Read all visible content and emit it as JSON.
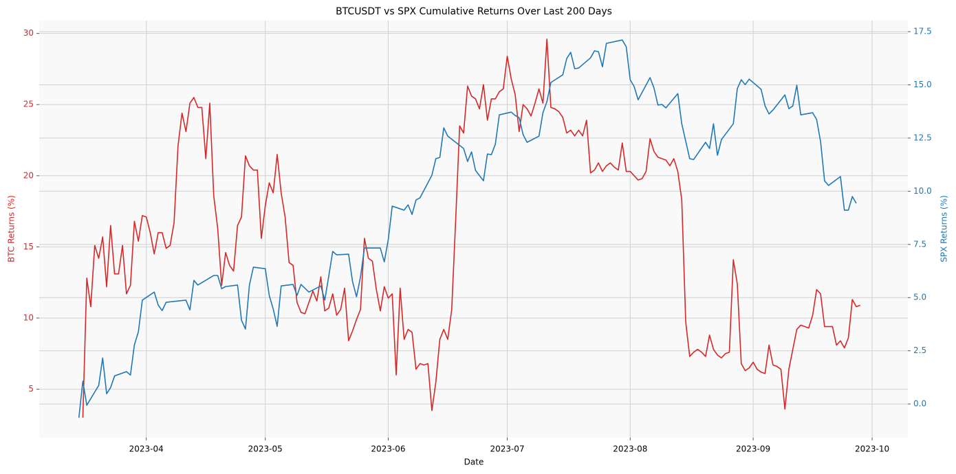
{
  "chart_data": {
    "type": "line",
    "title": "BTCUSDT vs SPX Cumulative Returns Over Last 200 Days",
    "xlabel": "Date",
    "ylabel": "BTC Returns (%)",
    "y2label": "SPX Returns (%)",
    "xlim": [
      "2023-03-05",
      "2023-10-10"
    ],
    "xticks": [
      {
        "value": "2023-04-01",
        "label": "2023-04"
      },
      {
        "value": "2023-05-01",
        "label": "2023-05"
      },
      {
        "value": "2023-06-01",
        "label": "2023-06"
      },
      {
        "value": "2023-07-01",
        "label": "2023-07"
      },
      {
        "value": "2023-08-01",
        "label": "2023-08"
      },
      {
        "value": "2023-09-01",
        "label": "2023-09"
      },
      {
        "value": "2023-10-01",
        "label": "2023-10"
      }
    ],
    "ylim": [
      1.6,
      30.9
    ],
    "yticks": [
      5,
      10,
      15,
      20,
      25,
      30
    ],
    "y2lim": [
      -1.58,
      18.02
    ],
    "y2ticks": [
      {
        "value": 0,
        "label": "0.0"
      },
      {
        "value": 2.5,
        "label": "2.5"
      },
      {
        "value": 5,
        "label": "5.0"
      },
      {
        "value": 7.5,
        "label": "7.5"
      },
      {
        "value": 10,
        "label": "10.0"
      },
      {
        "value": 12.5,
        "label": "12.5"
      },
      {
        "value": 15,
        "label": "15.0"
      },
      {
        "value": 17.5,
        "label": "17.5"
      }
    ],
    "grid": true,
    "series": [
      {
        "color": "#d62728",
        "axis": "y",
        "x": [
          "2023-03-16",
          "2023-03-17",
          "2023-03-18",
          "2023-03-19",
          "2023-03-20",
          "2023-03-21",
          "2023-03-22",
          "2023-03-23",
          "2023-03-24",
          "2023-03-25",
          "2023-03-26",
          "2023-03-27",
          "2023-03-28",
          "2023-03-29",
          "2023-03-30",
          "2023-03-31",
          "2023-04-01",
          "2023-04-02",
          "2023-04-03",
          "2023-04-04",
          "2023-04-05",
          "2023-04-06",
          "2023-04-07",
          "2023-04-08",
          "2023-04-09",
          "2023-04-10",
          "2023-04-11",
          "2023-04-12",
          "2023-04-13",
          "2023-04-14",
          "2023-04-15",
          "2023-04-16",
          "2023-04-17",
          "2023-04-18",
          "2023-04-19",
          "2023-04-20",
          "2023-04-21",
          "2023-04-22",
          "2023-04-23",
          "2023-04-24",
          "2023-04-25",
          "2023-04-26",
          "2023-04-27",
          "2023-04-28",
          "2023-04-29",
          "2023-04-30",
          "2023-05-01",
          "2023-05-02",
          "2023-05-03",
          "2023-05-04",
          "2023-05-05",
          "2023-05-06",
          "2023-05-07",
          "2023-05-08",
          "2023-05-09",
          "2023-05-10",
          "2023-05-11",
          "2023-05-12",
          "2023-05-13",
          "2023-05-14",
          "2023-05-15",
          "2023-05-16",
          "2023-05-17",
          "2023-05-18",
          "2023-05-19",
          "2023-05-20",
          "2023-05-21",
          "2023-05-22",
          "2023-05-23",
          "2023-05-24",
          "2023-05-25",
          "2023-05-26",
          "2023-05-27",
          "2023-05-28",
          "2023-05-29",
          "2023-05-30",
          "2023-05-31",
          "2023-06-01",
          "2023-06-02",
          "2023-06-03",
          "2023-06-04",
          "2023-06-05",
          "2023-06-06",
          "2023-06-07",
          "2023-06-08",
          "2023-06-09",
          "2023-06-10",
          "2023-06-11",
          "2023-06-12",
          "2023-06-13",
          "2023-06-14",
          "2023-06-15",
          "2023-06-16",
          "2023-06-17",
          "2023-06-18",
          "2023-06-19",
          "2023-06-20",
          "2023-06-21",
          "2023-06-22",
          "2023-06-23",
          "2023-06-24",
          "2023-06-25",
          "2023-06-26",
          "2023-06-27",
          "2023-06-28",
          "2023-06-29",
          "2023-06-30",
          "2023-07-01",
          "2023-07-02",
          "2023-07-03",
          "2023-07-04",
          "2023-07-05",
          "2023-07-06",
          "2023-07-07",
          "2023-07-08",
          "2023-07-09",
          "2023-07-10",
          "2023-07-11",
          "2023-07-12",
          "2023-07-13",
          "2023-07-14",
          "2023-07-15",
          "2023-07-16",
          "2023-07-17",
          "2023-07-18",
          "2023-07-19",
          "2023-07-20",
          "2023-07-21",
          "2023-07-22",
          "2023-07-23",
          "2023-07-24",
          "2023-07-25",
          "2023-07-26",
          "2023-07-27",
          "2023-07-28",
          "2023-07-29",
          "2023-07-30",
          "2023-07-31",
          "2023-08-01",
          "2023-08-02",
          "2023-08-03",
          "2023-08-04",
          "2023-08-05",
          "2023-08-06",
          "2023-08-07",
          "2023-08-08",
          "2023-08-09",
          "2023-08-10",
          "2023-08-11",
          "2023-08-12",
          "2023-08-13",
          "2023-08-14",
          "2023-08-15",
          "2023-08-16",
          "2023-08-17",
          "2023-08-18",
          "2023-08-19",
          "2023-08-20",
          "2023-08-21",
          "2023-08-22",
          "2023-08-23",
          "2023-08-24",
          "2023-08-25",
          "2023-08-26",
          "2023-08-27",
          "2023-08-28",
          "2023-08-29",
          "2023-08-30",
          "2023-08-31",
          "2023-09-01",
          "2023-09-02",
          "2023-09-03",
          "2023-09-04",
          "2023-09-05",
          "2023-09-06",
          "2023-09-07",
          "2023-09-08",
          "2023-09-09",
          "2023-09-10",
          "2023-09-11",
          "2023-09-12",
          "2023-09-13",
          "2023-09-14",
          "2023-09-15",
          "2023-09-16",
          "2023-09-17",
          "2023-09-18",
          "2023-09-19",
          "2023-09-20",
          "2023-09-21",
          "2023-09-22",
          "2023-09-23",
          "2023-09-24",
          "2023-09-25",
          "2023-09-26",
          "2023-09-27",
          "2023-09-28"
        ],
        "values": [
          3.0,
          12.8,
          10.8,
          15.1,
          14.2,
          15.7,
          12.2,
          16.5,
          13.1,
          13.1,
          15.1,
          11.7,
          12.3,
          16.8,
          15.4,
          17.2,
          17.1,
          16.0,
          14.5,
          16.0,
          16.0,
          14.9,
          15.1,
          16.7,
          22.1,
          24.4,
          23.1,
          25.1,
          25.5,
          24.8,
          24.8,
          21.2,
          25.1,
          18.6,
          16.3,
          12.3,
          14.6,
          13.7,
          13.3,
          16.5,
          17.1,
          21.4,
          20.7,
          20.4,
          20.4,
          15.6,
          17.9,
          19.5,
          18.8,
          21.5,
          18.8,
          17.1,
          13.9,
          13.7,
          11.1,
          10.4,
          10.3,
          11.1,
          11.9,
          11.2,
          12.9,
          10.5,
          10.7,
          11.7,
          10.2,
          10.6,
          12.1,
          8.4,
          9.1,
          9.9,
          10.6,
          15.6,
          14.2,
          14.0,
          12.0,
          10.5,
          12.2,
          11.4,
          11.7,
          6.0,
          12.1,
          8.5,
          9.2,
          9.0,
          6.4,
          6.8,
          6.7,
          6.8,
          3.5,
          5.5,
          8.5,
          9.2,
          8.5,
          10.6,
          16.9,
          23.5,
          23.0,
          26.3,
          25.6,
          25.4,
          24.7,
          26.4,
          23.9,
          25.4,
          25.4,
          25.9,
          26.1,
          28.4,
          26.8,
          25.7,
          23.1,
          25.0,
          24.7,
          24.2,
          25.1,
          26.1,
          25.1,
          29.6,
          24.8,
          24.7,
          24.5,
          24.1,
          23.0,
          23.2,
          22.8,
          23.2,
          22.8,
          23.9,
          20.2,
          20.4,
          20.9,
          20.3,
          20.7,
          20.9,
          20.6,
          20.4,
          22.3,
          20.3,
          20.3,
          20.0,
          19.7,
          19.8,
          20.3,
          22.6,
          21.7,
          21.3,
          21.2,
          21.1,
          20.7,
          21.2,
          20.3,
          18.3,
          9.7,
          7.3,
          7.6,
          7.8,
          7.6,
          7.3,
          8.8,
          7.8,
          7.4,
          7.2,
          7.5,
          7.6,
          14.1,
          12.4,
          6.8,
          6.3,
          6.5,
          6.9,
          6.4,
          6.2,
          6.1,
          8.1,
          6.7,
          6.6,
          6.4,
          3.6,
          6.4,
          7.8,
          9.2,
          9.5,
          9.4,
          9.3,
          10.2,
          12.0,
          11.7,
          9.4,
          9.4,
          9.4,
          8.1,
          8.4,
          7.9,
          8.6,
          11.3,
          10.8,
          10.9
        ]
      },
      {
        "color": "#1f77b4",
        "axis": "y2",
        "x": [
          "2023-03-15",
          "2023-03-16",
          "2023-03-17",
          "2023-03-20",
          "2023-03-21",
          "2023-03-22",
          "2023-03-23",
          "2023-03-24",
          "2023-03-27",
          "2023-03-28",
          "2023-03-29",
          "2023-03-30",
          "2023-03-31",
          "2023-04-03",
          "2023-04-04",
          "2023-04-05",
          "2023-04-06",
          "2023-04-11",
          "2023-04-12",
          "2023-04-13",
          "2023-04-14",
          "2023-04-18",
          "2023-04-19",
          "2023-04-20",
          "2023-04-21",
          "2023-04-24",
          "2023-04-25",
          "2023-04-26",
          "2023-04-27",
          "2023-04-28",
          "2023-05-01",
          "2023-05-02",
          "2023-05-03",
          "2023-05-04",
          "2023-05-05",
          "2023-05-08",
          "2023-05-09",
          "2023-05-10",
          "2023-05-12",
          "2023-05-15",
          "2023-05-16",
          "2023-05-17",
          "2023-05-18",
          "2023-05-19",
          "2023-05-22",
          "2023-05-23",
          "2023-05-24",
          "2023-05-25",
          "2023-05-26",
          "2023-05-30",
          "2023-05-31",
          "2023-06-01",
          "2023-06-02",
          "2023-06-05",
          "2023-06-06",
          "2023-06-07",
          "2023-06-08",
          "2023-06-09",
          "2023-06-12",
          "2023-06-13",
          "2023-06-14",
          "2023-06-15",
          "2023-06-16",
          "2023-06-20",
          "2023-06-21",
          "2023-06-22",
          "2023-06-23",
          "2023-06-25",
          "2023-06-26",
          "2023-06-27",
          "2023-06-28",
          "2023-06-29",
          "2023-07-02",
          "2023-07-03",
          "2023-07-04",
          "2023-07-05",
          "2023-07-06",
          "2023-07-09",
          "2023-07-10",
          "2023-07-11",
          "2023-07-12",
          "2023-07-15",
          "2023-07-16",
          "2023-07-17",
          "2023-07-18",
          "2023-07-19",
          "2023-07-22",
          "2023-07-23",
          "2023-07-24",
          "2023-07-25",
          "2023-07-26",
          "2023-07-30",
          "2023-07-31",
          "2023-08-01",
          "2023-08-02",
          "2023-08-03",
          "2023-08-06",
          "2023-08-07",
          "2023-08-08",
          "2023-08-09",
          "2023-08-10",
          "2023-08-13",
          "2023-08-14",
          "2023-08-16",
          "2023-08-17",
          "2023-08-20",
          "2023-08-21",
          "2023-08-22",
          "2023-08-23",
          "2023-08-24",
          "2023-08-27",
          "2023-08-28",
          "2023-08-29",
          "2023-08-30",
          "2023-08-31",
          "2023-09-03",
          "2023-09-04",
          "2023-09-05",
          "2023-09-06",
          "2023-09-09",
          "2023-09-10",
          "2023-09-11",
          "2023-09-12",
          "2023-09-13",
          "2023-09-16",
          "2023-09-17",
          "2023-09-18",
          "2023-09-19",
          "2023-09-20",
          "2023-09-23",
          "2023-09-24",
          "2023-09-25",
          "2023-09-26",
          "2023-09-27"
        ],
        "values": [
          -0.65,
          1.07,
          -0.06,
          0.87,
          2.16,
          0.48,
          0.77,
          1.32,
          1.52,
          1.36,
          2.78,
          3.39,
          4.88,
          5.26,
          4.65,
          4.39,
          4.78,
          4.88,
          4.42,
          5.81,
          5.59,
          6.04,
          6.04,
          5.42,
          5.52,
          5.59,
          3.94,
          3.52,
          5.59,
          6.43,
          6.36,
          5.1,
          4.46,
          3.65,
          5.55,
          5.62,
          5.1,
          5.62,
          5.26,
          5.55,
          4.88,
          6.01,
          7.17,
          7.01,
          7.04,
          5.75,
          5.04,
          5.97,
          7.33,
          7.33,
          6.68,
          7.72,
          9.3,
          9.11,
          9.36,
          8.91,
          9.59,
          9.69,
          10.75,
          11.53,
          11.59,
          12.98,
          12.59,
          12.01,
          11.4,
          11.85,
          10.98,
          10.49,
          11.75,
          11.72,
          12.21,
          13.59,
          13.72,
          13.56,
          13.46,
          12.66,
          12.3,
          12.59,
          13.69,
          14.21,
          15.11,
          15.47,
          16.24,
          16.53,
          15.76,
          15.79,
          16.27,
          16.6,
          16.56,
          15.85,
          16.95,
          17.11,
          16.79,
          15.24,
          14.92,
          14.3,
          15.34,
          14.85,
          14.05,
          14.08,
          13.92,
          14.59,
          13.17,
          11.53,
          11.49,
          12.3,
          12.01,
          13.17,
          11.69,
          12.43,
          13.17,
          14.82,
          15.24,
          15.01,
          15.27,
          14.79,
          14.01,
          13.63,
          13.82,
          14.53,
          13.88,
          14.01,
          14.98,
          13.59,
          13.69,
          13.37,
          12.33,
          10.49,
          10.27,
          10.69,
          9.11,
          9.11,
          9.75,
          9.43
        ]
      }
    ]
  }
}
